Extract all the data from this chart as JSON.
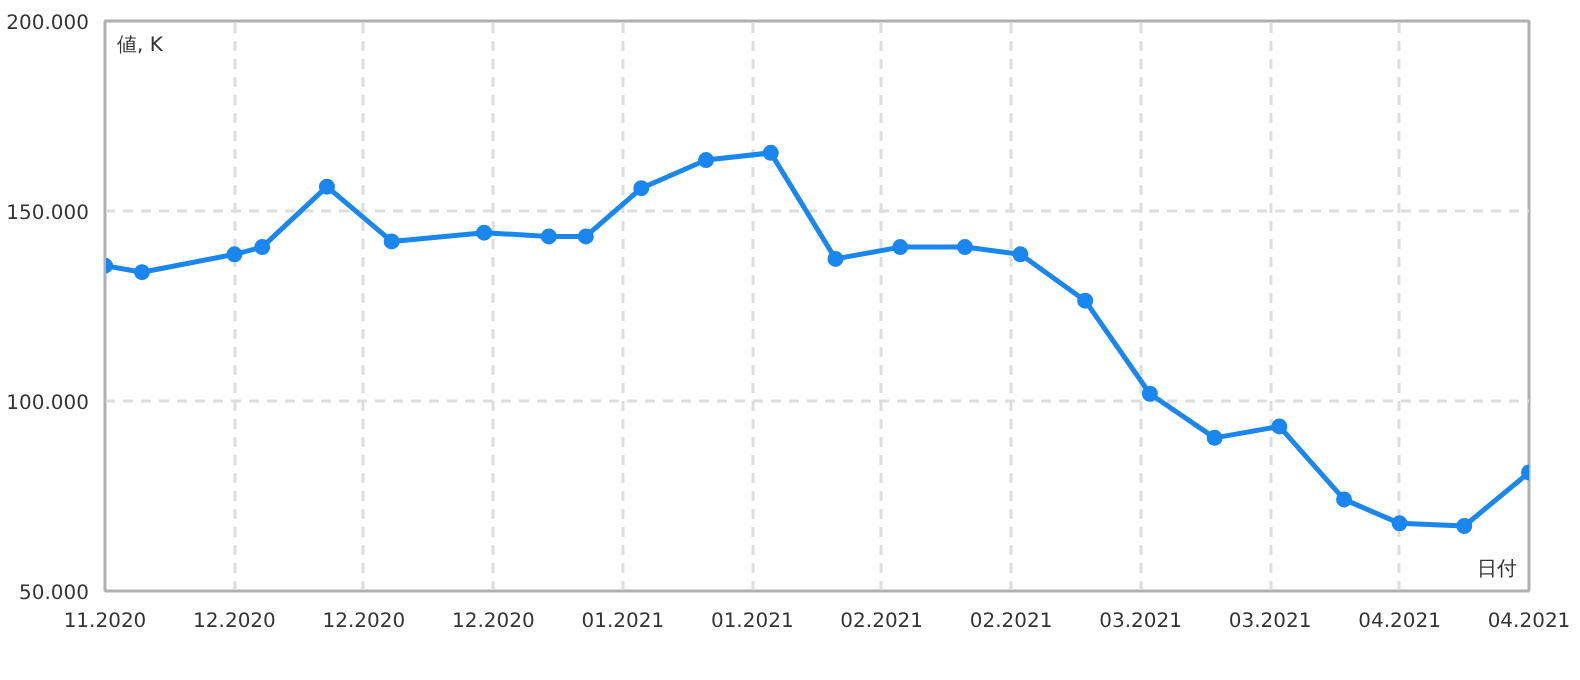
{
  "chart_data": {
    "type": "line",
    "xlabel": "日付",
    "ylabel": "値, K",
    "x": [
      "2020-11-17",
      "2020-11-21",
      "2020-12-01",
      "2020-12-04",
      "2020-12-11",
      "2020-12-18",
      "2020-12-28",
      "2021-01-04",
      "2021-01-08",
      "2021-01-14",
      "2021-01-21",
      "2021-01-28",
      "2021-02-04",
      "2021-02-11",
      "2021-02-18",
      "2021-02-24",
      "2021-03-03",
      "2021-03-10",
      "2021-03-17",
      "2021-03-24",
      "2021-03-31",
      "2021-04-06",
      "2021-04-13",
      "2021-04-20"
    ],
    "series": [
      {
        "color": "#1a86f0",
        "values": [
          135.6,
          133.9,
          138.6,
          140.5,
          156.4,
          142.0,
          144.3,
          143.3,
          143.3,
          156.0,
          163.4,
          165.3,
          137.4,
          140.5,
          140.5,
          138.6,
          126.4,
          101.9,
          90.3,
          93.3,
          74.1,
          67.8,
          67.1,
          81.2
        ]
      }
    ],
    "xlim": [
      "2020-11-17",
      "2021-04-20"
    ],
    "ylim": [
      50,
      200
    ],
    "xticks": [
      {
        "value": "2020-11-17",
        "label": "11.2020"
      },
      {
        "value": "2020-12-01",
        "label": "12.2020"
      },
      {
        "value": "2020-12-15",
        "label": "12.2020"
      },
      {
        "value": "2020-12-29",
        "label": "12.2020"
      },
      {
        "value": "2021-01-12",
        "label": "01.2021"
      },
      {
        "value": "2021-01-26",
        "label": "01.2021"
      },
      {
        "value": "2021-02-09",
        "label": "02.2021"
      },
      {
        "value": "2021-02-23",
        "label": "02.2021"
      },
      {
        "value": "2021-03-09",
        "label": "03.2021"
      },
      {
        "value": "2021-03-23",
        "label": "03.2021"
      },
      {
        "value": "2021-04-06",
        "label": "04.2021"
      },
      {
        "value": "2021-04-20",
        "label": "04.2021"
      }
    ],
    "yticks": [
      {
        "value": 50,
        "label": "50.000"
      },
      {
        "value": 100,
        "label": "100.000"
      },
      {
        "value": 150,
        "label": "150.000"
      },
      {
        "value": 200,
        "label": "200.000"
      }
    ],
    "grid": true,
    "marker": "circle",
    "line_style": "solid"
  }
}
